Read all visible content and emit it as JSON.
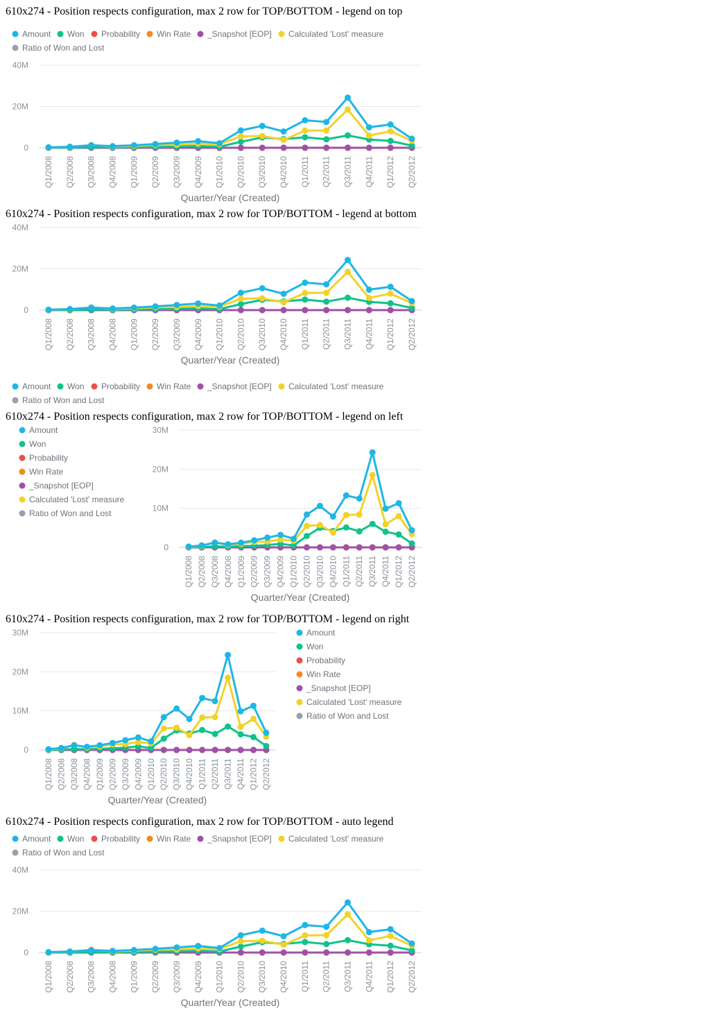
{
  "colors": {
    "amount": "#1eb6e6",
    "won": "#10c28c",
    "probability": "#e8504a",
    "win_rate": "#f08c1e",
    "snapshot": "#a050a8",
    "lost": "#f2d22a",
    "ratio": "#98a0aa",
    "axis_text": "#8a9199",
    "grid": "#e6e8ea"
  },
  "chart_data": [
    {
      "type": "line",
      "title": "610x274 - Position respects configuration, max 2 row for TOP/BOTTOM - legend on top",
      "legend_position": "top",
      "xlabel": "Quarter/Year (Created)",
      "ylabel": "",
      "yticks": [
        "0",
        "20M",
        "40M"
      ],
      "ylim": [
        0,
        40000000
      ],
      "grid": true,
      "categories": [
        "Q1/2008",
        "Q2/2008",
        "Q3/2008",
        "Q4/2008",
        "Q1/2009",
        "Q2/2009",
        "Q3/2009",
        "Q4/2009",
        "Q1/2010",
        "Q2/2010",
        "Q3/2010",
        "Q4/2010",
        "Q1/2011",
        "Q2/2011",
        "Q3/2011",
        "Q4/2011",
        "Q1/2012",
        "Q2/2012"
      ],
      "legend": [
        "Amount",
        "Won",
        "Probability",
        "Win Rate",
        "_Snapshot [EOP]",
        "Calculated 'Lost' measure",
        "Ratio of Won and Lost"
      ]
    },
    {
      "type": "line",
      "title": "610x274 - Position respects configuration, max 2 row for TOP/BOTTOM - legend at bottom",
      "legend_position": "bottom",
      "xlabel": "Quarter/Year (Created)",
      "ylabel": "",
      "yticks": [
        "0",
        "20M",
        "40M"
      ],
      "ylim": [
        0,
        40000000
      ],
      "grid": true,
      "categories": [
        "Q1/2008",
        "Q2/2008",
        "Q3/2008",
        "Q4/2008",
        "Q1/2009",
        "Q2/2009",
        "Q3/2009",
        "Q4/2009",
        "Q1/2010",
        "Q2/2010",
        "Q3/2010",
        "Q4/2010",
        "Q1/2011",
        "Q2/2011",
        "Q3/2011",
        "Q4/2011",
        "Q1/2012",
        "Q2/2012"
      ],
      "legend": [
        "Amount",
        "Won",
        "Probability",
        "Win Rate",
        "_Snapshot [EOP]",
        "Calculated 'Lost' measure",
        "Ratio of Won and Lost"
      ]
    },
    {
      "type": "line",
      "title": "610x274 - Position respects configuration, max 2 row for TOP/BOTTOM - legend on left",
      "legend_position": "left",
      "xlabel": "Quarter/Year (Created)",
      "ylabel": "",
      "yticks": [
        "0",
        "10M",
        "20M",
        "30M"
      ],
      "ylim": [
        0,
        30000000
      ],
      "grid": true,
      "categories": [
        "Q1/2008",
        "Q2/2008",
        "Q3/2008",
        "Q4/2008",
        "Q1/2009",
        "Q2/2009",
        "Q3/2009",
        "Q4/2009",
        "Q1/2010",
        "Q2/2010",
        "Q3/2010",
        "Q4/2010",
        "Q1/2011",
        "Q2/2011",
        "Q3/2011",
        "Q4/2011",
        "Q1/2012",
        "Q2/2012"
      ],
      "legend": [
        "Amount",
        "Won",
        "Probability",
        "Win Rate",
        "_Snapshot [EOP]",
        "Calculated 'Lost' measure",
        "Ratio of Won and Lost"
      ]
    },
    {
      "type": "line",
      "title": "610x274 - Position respects configuration, max 2 row for TOP/BOTTOM - legend on right",
      "legend_position": "right",
      "xlabel": "Quarter/Year (Created)",
      "ylabel": "",
      "yticks": [
        "0",
        "10M",
        "20M",
        "30M"
      ],
      "ylim": [
        0,
        30000000
      ],
      "grid": true,
      "categories": [
        "Q1/2008",
        "Q2/2008",
        "Q3/2008",
        "Q4/2008",
        "Q1/2009",
        "Q2/2009",
        "Q3/2009",
        "Q4/2009",
        "Q1/2010",
        "Q2/2010",
        "Q3/2010",
        "Q4/2010",
        "Q1/2011",
        "Q2/2011",
        "Q3/2011",
        "Q4/2011",
        "Q1/2012",
        "Q2/2012"
      ],
      "legend": [
        "Amount",
        "Won",
        "Probability",
        "Win Rate",
        "_Snapshot [EOP]",
        "Calculated 'Lost' measure",
        "Ratio of Won and Lost"
      ]
    },
    {
      "type": "line",
      "title": "610x274 - Position respects configuration, max 2 row for TOP/BOTTOM - auto legend",
      "legend_position": "top",
      "xlabel": "Quarter/Year (Created)",
      "ylabel": "",
      "yticks": [
        "0",
        "20M",
        "40M"
      ],
      "ylim": [
        0,
        40000000
      ],
      "grid": true,
      "categories": [
        "Q1/2008",
        "Q2/2008",
        "Q3/2008",
        "Q4/2008",
        "Q1/2009",
        "Q2/2009",
        "Q3/2009",
        "Q4/2009",
        "Q1/2010",
        "Q2/2010",
        "Q3/2010",
        "Q4/2010",
        "Q1/2011",
        "Q2/2011",
        "Q3/2011",
        "Q4/2011",
        "Q1/2012",
        "Q2/2012"
      ],
      "legend": [
        "Amount",
        "Won",
        "Probability",
        "Win Rate",
        "_Snapshot [EOP]",
        "Calculated 'Lost' measure",
        "Ratio of Won and Lost"
      ]
    }
  ],
  "series": [
    {
      "name": "Amount",
      "color_key": "amount",
      "values": [
        200000,
        500000,
        1200000,
        800000,
        1200000,
        1800000,
        2500000,
        3200000,
        2200000,
        8400000,
        10600000,
        7900000,
        13300000,
        12500000,
        24300000,
        9900000,
        11300000,
        4400000
      ]
    },
    {
      "name": "Won",
      "color_key": "won",
      "values": [
        50000,
        100000,
        250000,
        200000,
        300000,
        400000,
        600000,
        900000,
        500000,
        2900000,
        5000000,
        4200000,
        5100000,
        4100000,
        6000000,
        4000000,
        3300000,
        1000000
      ]
    },
    {
      "name": "Probability",
      "color_key": "probability",
      "values": [
        0,
        0,
        0,
        0,
        0,
        0,
        0,
        0,
        0,
        0,
        0,
        0,
        0,
        0,
        0,
        0,
        0,
        0
      ]
    },
    {
      "name": "Win Rate",
      "color_key": "win_rate",
      "values": [
        0,
        0,
        0,
        0,
        0,
        0,
        0,
        0,
        0,
        0,
        0,
        0,
        0,
        0,
        0,
        0,
        0,
        0
      ]
    },
    {
      "name": "_Snapshot [EOP]",
      "color_key": "snapshot",
      "values": [
        0,
        0,
        0,
        0,
        0,
        0,
        0,
        0,
        0,
        0,
        0,
        0,
        0,
        0,
        0,
        0,
        0,
        0
      ]
    },
    {
      "name": "Calculated 'Lost' measure",
      "color_key": "lost",
      "values": [
        150000,
        400000,
        1300000,
        600000,
        900000,
        1400000,
        1500000,
        2000000,
        1700000,
        5500000,
        5700000,
        3800000,
        8300000,
        8400000,
        18500000,
        5900000,
        8000000,
        3400000
      ]
    },
    {
      "name": "Ratio of Won and Lost",
      "color_key": "ratio",
      "values": [
        0,
        0,
        0,
        0,
        0,
        0,
        0,
        0,
        0,
        0,
        0,
        0,
        0,
        0,
        0,
        0,
        0,
        0
      ]
    }
  ]
}
